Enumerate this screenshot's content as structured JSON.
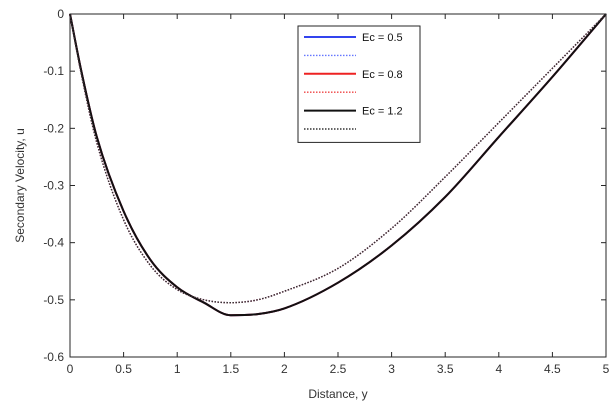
{
  "chart_data": {
    "type": "line",
    "xlabel": "Distance, y",
    "ylabel": "Secondary Velocity, u",
    "xlim": [
      0,
      5
    ],
    "ylim": [
      -0.6,
      0
    ],
    "xticks": [
      "0",
      "0.5",
      "1",
      "1.5",
      "2",
      "2.5",
      "3",
      "3.5",
      "4",
      "4.5",
      "5"
    ],
    "yticks": [
      "0",
      "-0.1",
      "-0.2",
      "-0.3",
      "-0.4",
      "-0.5",
      "-0.6"
    ],
    "grid": false,
    "legend_position": "top-center",
    "x": [
      0,
      0.1,
      0.25,
      0.5,
      0.75,
      1.0,
      1.25,
      1.5,
      1.75,
      2.0,
      2.5,
      3.0,
      3.5,
      4.0,
      4.5,
      5.0
    ],
    "series": [
      {
        "name": "Ec = 0.5",
        "color": "#3344ee",
        "style": "solid",
        "values": [
          0,
          -0.095,
          -0.215,
          -0.345,
          -0.43,
          -0.478,
          -0.505,
          -0.527,
          -0.525,
          -0.515,
          -0.47,
          -0.405,
          -0.32,
          -0.215,
          -0.11,
          0
        ]
      },
      {
        "color": "#6677ff",
        "style": "dotted",
        "values": [
          0,
          -0.1,
          -0.225,
          -0.36,
          -0.44,
          -0.482,
          -0.5,
          -0.505,
          -0.5,
          -0.485,
          -0.445,
          -0.375,
          -0.285,
          -0.19,
          -0.095,
          0
        ]
      },
      {
        "name": "Ec = 0.8",
        "color": "#ee2222",
        "style": "solid",
        "values": [
          0,
          -0.095,
          -0.215,
          -0.345,
          -0.43,
          -0.478,
          -0.505,
          -0.527,
          -0.525,
          -0.515,
          -0.47,
          -0.405,
          -0.32,
          -0.215,
          -0.11,
          0
        ]
      },
      {
        "color": "#ee4444",
        "style": "dotted",
        "values": [
          0,
          -0.1,
          -0.225,
          -0.36,
          -0.44,
          -0.482,
          -0.5,
          -0.505,
          -0.5,
          -0.485,
          -0.445,
          -0.375,
          -0.285,
          -0.19,
          -0.095,
          0
        ]
      },
      {
        "name": "Ec = 1.2",
        "color": "#111111",
        "style": "solid",
        "values": [
          0,
          -0.095,
          -0.215,
          -0.345,
          -0.43,
          -0.478,
          -0.505,
          -0.527,
          -0.525,
          -0.515,
          -0.47,
          -0.405,
          -0.32,
          -0.215,
          -0.11,
          0
        ]
      },
      {
        "color": "#333333",
        "style": "dotted",
        "values": [
          0,
          -0.1,
          -0.225,
          -0.36,
          -0.44,
          -0.482,
          -0.5,
          -0.505,
          -0.5,
          -0.485,
          -0.445,
          -0.375,
          -0.285,
          -0.19,
          -0.095,
          0
        ]
      }
    ]
  }
}
